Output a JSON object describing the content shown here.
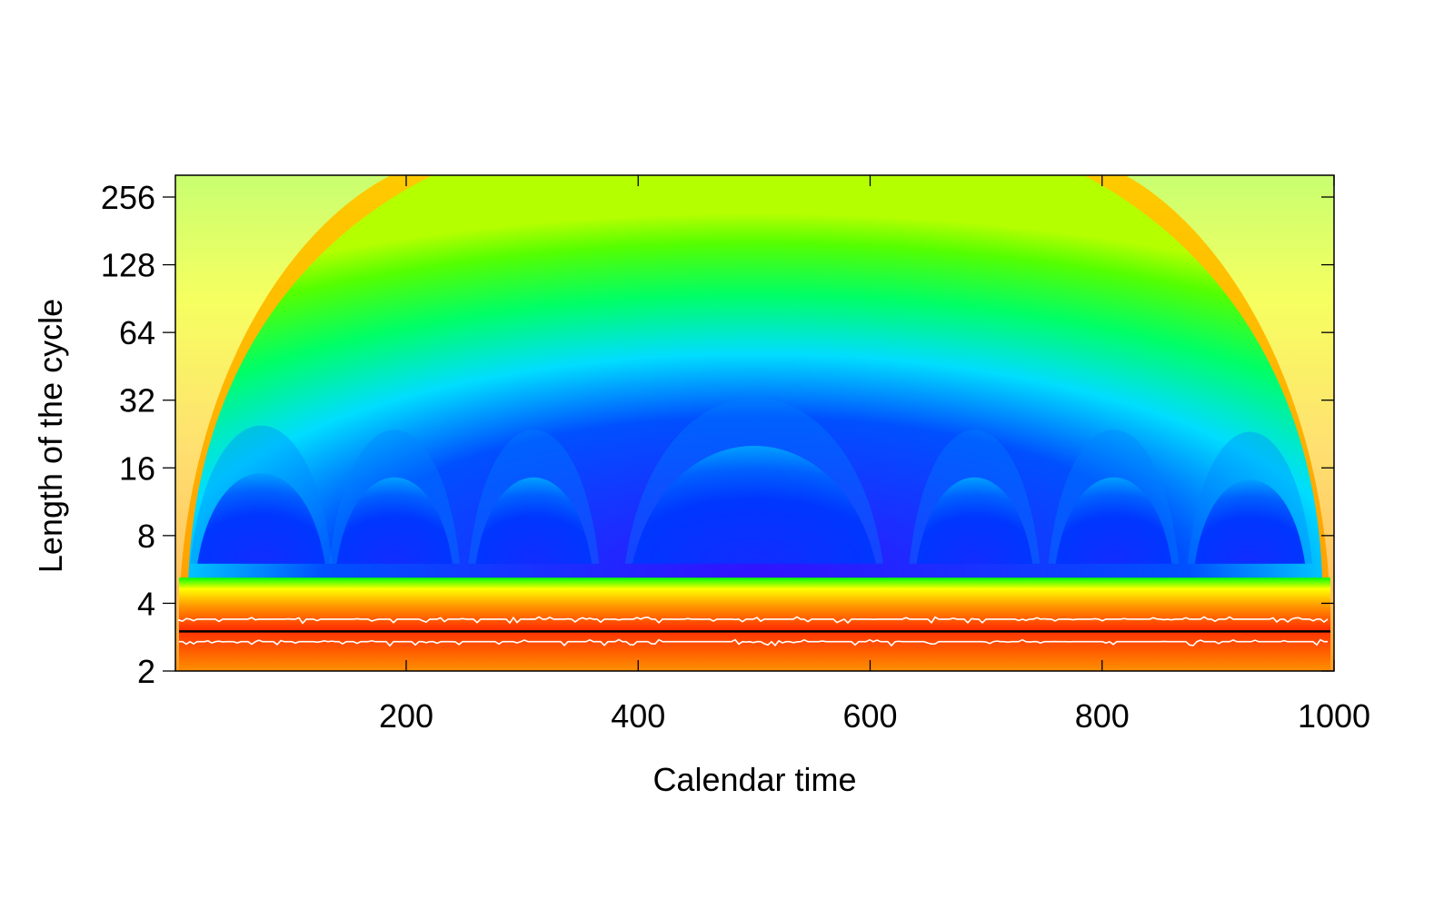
{
  "chart_data": {
    "type": "heatmap",
    "title": "",
    "xlabel": "Calendar time",
    "ylabel": "Length of the cycle",
    "xlim": [
      1,
      1000
    ],
    "ylim": [
      2,
      320
    ],
    "y_scale": "log2",
    "x_ticks": [
      200,
      400,
      600,
      800,
      1000
    ],
    "y_ticks": [
      2,
      4,
      8,
      16,
      32,
      64,
      128,
      256
    ],
    "x_tick_labels": [
      "200",
      "400",
      "600",
      "800",
      "1000"
    ],
    "y_tick_labels": [
      "2",
      "4",
      "8",
      "16",
      "32",
      "64",
      "128",
      "256"
    ],
    "colormap": [
      "#0000ff",
      "#00ffff",
      "#00ff00",
      "#ffff00",
      "#ff8000",
      "#ff0000"
    ],
    "ridge": {
      "period": 3,
      "color": "#000000"
    },
    "ridge_band": {
      "upper_period": 3.4,
      "lower_period": 2.7,
      "color": "#ffffff"
    },
    "low_regions_x": [
      [
        20,
        130
      ],
      [
        140,
        240
      ],
      [
        260,
        360
      ],
      [
        395,
        605
      ],
      [
        640,
        740
      ],
      [
        760,
        860
      ],
      [
        880,
        975
      ]
    ],
    "grid": false,
    "legend": "none"
  }
}
